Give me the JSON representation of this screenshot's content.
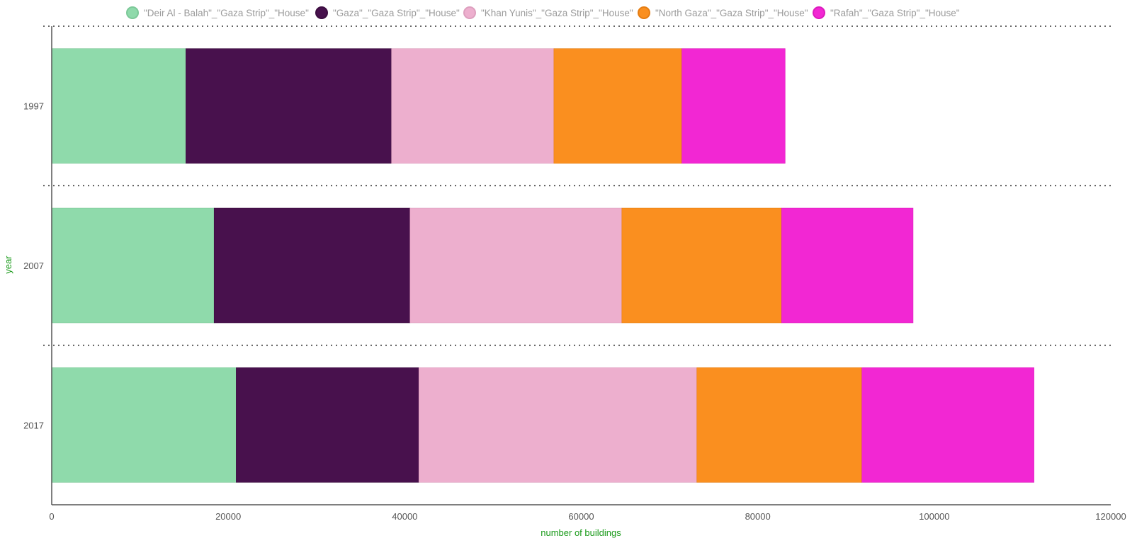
{
  "chart_data": {
    "type": "bar",
    "orientation": "horizontal",
    "stacked": true,
    "categories": [
      "1997",
      "2007",
      "2017"
    ],
    "series": [
      {
        "name": "\"Deir Al - Balah\"_\"Gaza Strip\"_\"House\"",
        "color": "#8fdaab",
        "border": "#7cc898",
        "values": [
          15200,
          18400,
          20900
        ]
      },
      {
        "name": "\"Gaza\"_\"Gaza Strip\"_\"House\"",
        "color": "#48114d",
        "border": "#3c0d40",
        "values": [
          23300,
          22200,
          20700
        ]
      },
      {
        "name": "\"Khan Yunis\"_\"Gaza Strip\"_\"House\"",
        "color": "#edafce",
        "border": "#dd9fbe",
        "values": [
          18400,
          24000,
          31500
        ]
      },
      {
        "name": "\"North Gaza\"_\"Gaza Strip\"_\"House\"",
        "color": "#fa8f1f",
        "border": "#e57d12",
        "values": [
          14500,
          18100,
          18700
        ]
      },
      {
        "name": "\"Rafah\"_\"Gaza Strip\"_\"House\"",
        "color": "#f227d3",
        "border": "#dc1bbd",
        "values": [
          11700,
          14900,
          19500
        ]
      }
    ],
    "xlabel": "number of buildings",
    "ylabel": "year",
    "xlim": [
      0,
      120000
    ],
    "xticks": [
      "0",
      "20000",
      "40000",
      "60000",
      "80000",
      "100000",
      "120000"
    ],
    "grid": "horizontal dotted separators",
    "legend": "top-center"
  }
}
